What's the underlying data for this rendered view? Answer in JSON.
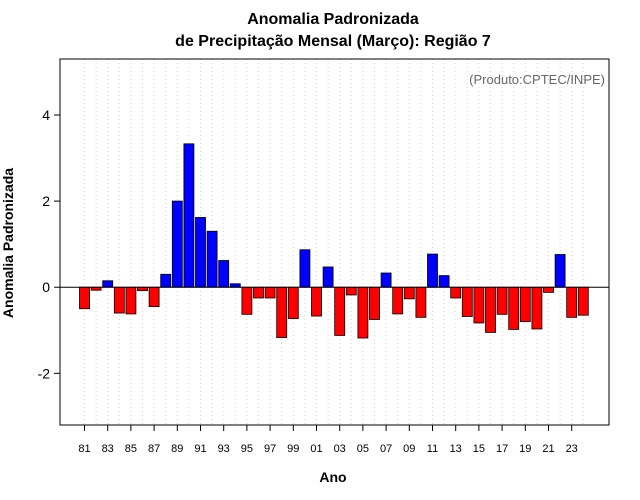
{
  "chart_data": {
    "type": "bar",
    "title_line1": "Anomalia Padronizada",
    "title_line2": "de Precipitação Mensal (Março): Região 7",
    "xlabel": "Ano",
    "ylabel": "Anomalia Padronizada",
    "credit": "(Produto:CPTEC/INPE)",
    "ylim": [
      -3.2,
      5.3
    ],
    "yticks": [
      -2,
      0,
      2,
      4
    ],
    "ytick_labels": [
      "-2",
      "0",
      "2",
      "4"
    ],
    "grid": true,
    "positive_color": "#0000ff",
    "negative_color": "#ff0000",
    "categories": [
      "81",
      "82",
      "83",
      "84",
      "85",
      "86",
      "87",
      "88",
      "89",
      "90",
      "91",
      "92",
      "93",
      "94",
      "95",
      "96",
      "97",
      "98",
      "99",
      "00",
      "01",
      "02",
      "03",
      "04",
      "05",
      "06",
      "07",
      "08",
      "09",
      "10",
      "11",
      "12",
      "13",
      "14",
      "15",
      "16",
      "17",
      "18",
      "19",
      "20",
      "21",
      "22",
      "23",
      "24"
    ],
    "x_tick_labels": [
      "81",
      "83",
      "85",
      "87",
      "89",
      "91",
      "93",
      "95",
      "97",
      "99",
      "01",
      "03",
      "05",
      "07",
      "09",
      "11",
      "13",
      "15",
      "17",
      "19",
      "21",
      "23"
    ],
    "values": [
      -0.5,
      -0.07,
      0.15,
      -0.6,
      -0.62,
      -0.08,
      -0.45,
      0.3,
      2.0,
      3.33,
      1.62,
      1.3,
      0.62,
      0.08,
      -0.63,
      -0.25,
      -0.25,
      -1.17,
      -0.73,
      0.87,
      -0.67,
      0.47,
      -1.12,
      -0.18,
      -1.18,
      -0.75,
      0.33,
      -0.62,
      -0.27,
      -0.7,
      0.77,
      0.27,
      -0.25,
      -0.68,
      -0.83,
      -1.05,
      -0.63,
      -0.98,
      -0.8,
      -0.97,
      -0.12,
      0.76,
      -0.7,
      -0.65
    ]
  }
}
